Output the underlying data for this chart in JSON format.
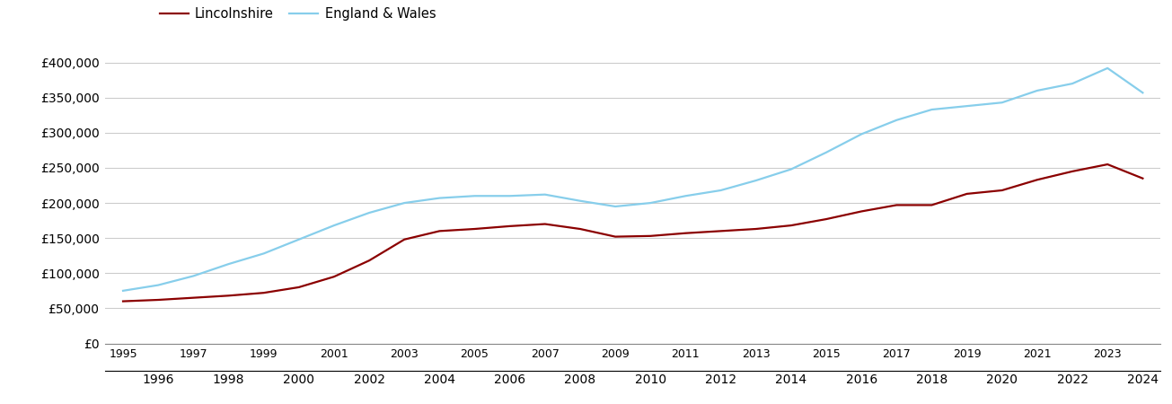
{
  "lincolnshire_color": "#8B0000",
  "england_wales_color": "#87CEEB",
  "background_color": "#ffffff",
  "grid_color": "#cccccc",
  "ylim": [
    0,
    420000
  ],
  "yticks": [
    0,
    50000,
    100000,
    150000,
    200000,
    250000,
    300000,
    350000,
    400000
  ],
  "legend_labels": [
    "Lincolnshire",
    "England & Wales"
  ],
  "years": [
    1995,
    1996,
    1997,
    1998,
    1999,
    2000,
    2001,
    2002,
    2003,
    2004,
    2005,
    2006,
    2007,
    2008,
    2009,
    2010,
    2011,
    2012,
    2013,
    2014,
    2015,
    2016,
    2017,
    2018,
    2019,
    2020,
    2021,
    2022,
    2023,
    2024
  ],
  "lincolnshire": [
    60000,
    62000,
    65000,
    68000,
    72000,
    80000,
    95000,
    118000,
    148000,
    160000,
    163000,
    167000,
    170000,
    163000,
    152000,
    153000,
    157000,
    160000,
    163000,
    168000,
    177000,
    188000,
    197000,
    197000,
    213000,
    218000,
    233000,
    245000,
    255000,
    235000
  ],
  "england_wales": [
    75000,
    83000,
    96000,
    113000,
    128000,
    148000,
    168000,
    186000,
    200000,
    207000,
    210000,
    210000,
    212000,
    203000,
    195000,
    200000,
    210000,
    218000,
    232000,
    248000,
    272000,
    298000,
    318000,
    333000,
    338000,
    343000,
    360000,
    370000,
    392000,
    357000
  ]
}
